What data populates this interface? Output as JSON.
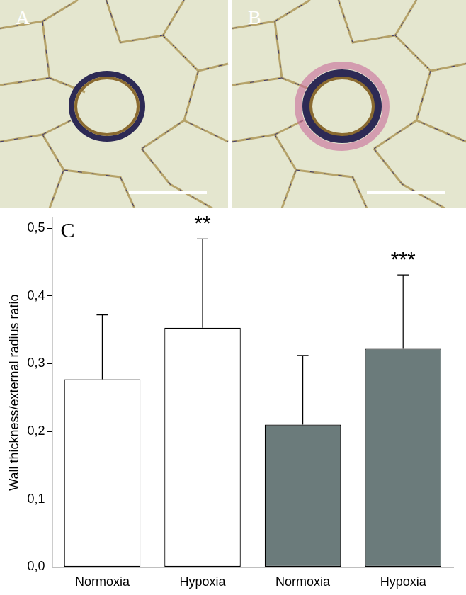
{
  "panels": [
    {
      "label": "A"
    },
    {
      "label": "B"
    }
  ],
  "chart_data": {
    "type": "bar",
    "title": "C",
    "y_label": "Wall thickness/external radius ratio",
    "categories": [
      "Normoxia",
      "Hypoxia",
      "Normoxia",
      "Hypoxia"
    ],
    "values": [
      0.277,
      0.353,
      0.21,
      0.322
    ],
    "errors": [
      0.095,
      0.131,
      0.102,
      0.109
    ],
    "colors": [
      "#ffffff",
      "#ffffff",
      "#6b7b7b",
      "#6b7b7b"
    ],
    "annotations": [
      {
        "index": 1,
        "text": "**"
      },
      {
        "index": 3,
        "text": "***"
      }
    ],
    "ylim": [
      0,
      0.515
    ],
    "yticks": [
      {
        "value": 0,
        "label": "0,0"
      },
      {
        "value": 0.1,
        "label": "0,1"
      },
      {
        "value": 0.2,
        "label": "0,2"
      },
      {
        "value": 0.3,
        "label": "0,3"
      },
      {
        "value": 0.4,
        "label": "0,4"
      },
      {
        "value": 0.5,
        "label": "0,5"
      }
    ],
    "grid": false
  }
}
